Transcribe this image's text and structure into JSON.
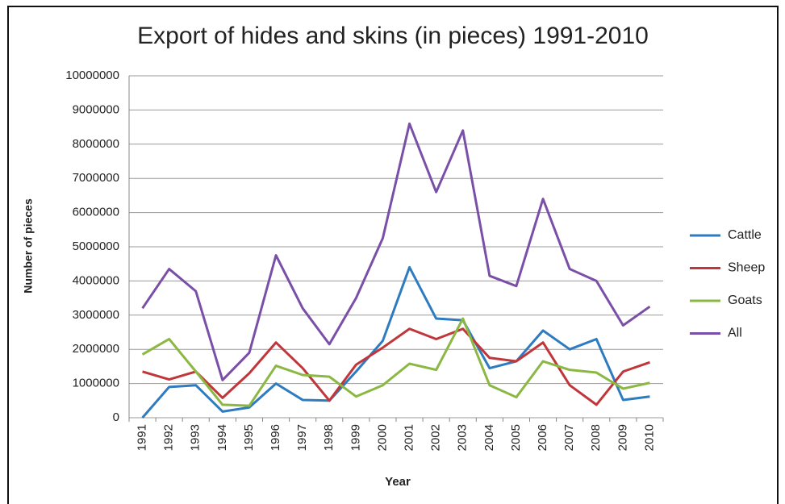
{
  "chart_data": {
    "type": "line",
    "title": "Export of hides and skins (in pieces) 1991-2010",
    "x_label": "Year",
    "y_label": "Number of pieces",
    "categories": [
      "1991",
      "1992",
      "1993",
      "1994",
      "1995",
      "1996",
      "1997",
      "1998",
      "1999",
      "2000",
      "2001",
      "2002",
      "2003",
      "2004",
      "2005",
      "2006",
      "2007",
      "2008",
      "2009",
      "2010"
    ],
    "series": [
      {
        "name": "Cattle",
        "color": "#2e7bbf",
        "values": [
          0,
          900000,
          950000,
          180000,
          300000,
          1000000,
          520000,
          500000,
          1350000,
          2250000,
          4400000,
          2900000,
          2850000,
          1450000,
          1650000,
          2550000,
          2000000,
          2300000,
          520000,
          620000
        ]
      },
      {
        "name": "Sheep",
        "color": "#c0363a",
        "values": [
          1350000,
          1120000,
          1350000,
          580000,
          1300000,
          2200000,
          1450000,
          500000,
          1550000,
          2050000,
          2600000,
          2300000,
          2600000,
          1750000,
          1650000,
          2200000,
          950000,
          380000,
          1350000,
          1620000
        ]
      },
      {
        "name": "Goats",
        "color": "#8ab842",
        "values": [
          1850000,
          2300000,
          1350000,
          380000,
          350000,
          1520000,
          1250000,
          1200000,
          620000,
          950000,
          1580000,
          1400000,
          2900000,
          950000,
          600000,
          1650000,
          1400000,
          1320000,
          850000,
          1020000
        ]
      },
      {
        "name": "All",
        "color": "#7a4fa8",
        "values": [
          3200000,
          4350000,
          3700000,
          1100000,
          1900000,
          4750000,
          3200000,
          2150000,
          3500000,
          5250000,
          8600000,
          6600000,
          8400000,
          4150000,
          3850000,
          6400000,
          4350000,
          4000000,
          2700000,
          3250000
        ]
      }
    ],
    "ylim": [
      0,
      10000000
    ],
    "yticks": [
      0,
      1000000,
      2000000,
      3000000,
      4000000,
      5000000,
      6000000,
      7000000,
      8000000,
      9000000,
      10000000
    ],
    "grid": true,
    "legend": "right"
  }
}
